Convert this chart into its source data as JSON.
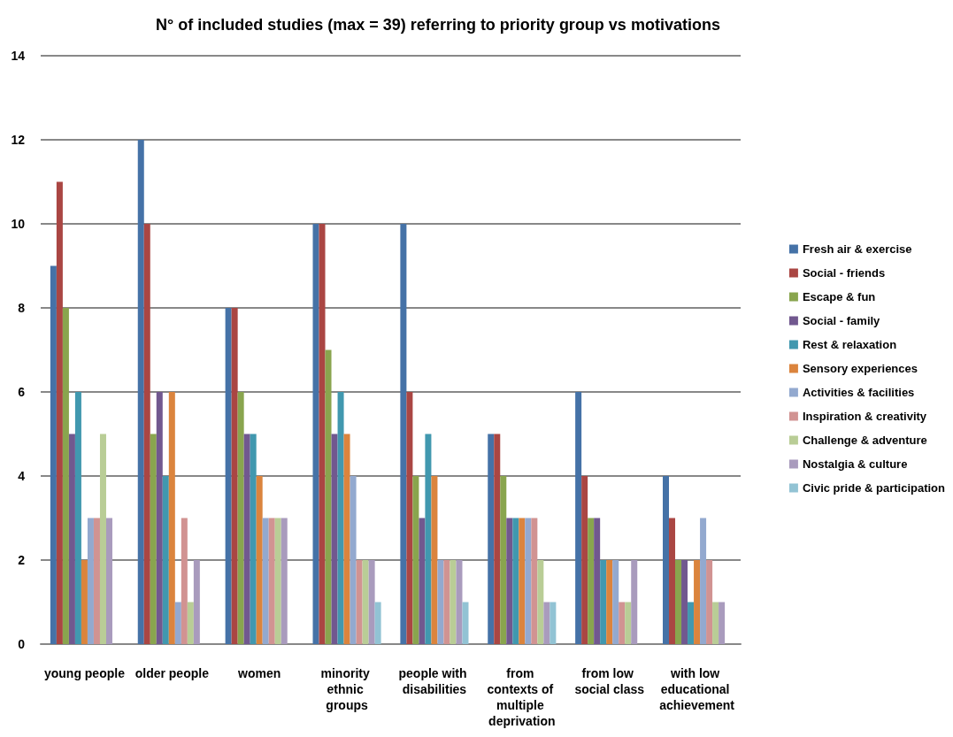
{
  "chart_data": {
    "type": "bar",
    "title": "N° of included studies (max = 39) referring to priority group vs motivations",
    "categories": [
      "young people",
      "older people",
      "women",
      "minority ethnic groups",
      "people with disabilities",
      "from contexts of multiple deprivation",
      "from low social class",
      "with low educational achievement"
    ],
    "series": [
      {
        "name": "Fresh air & exercise",
        "color": "#4572a7",
        "values": [
          9,
          12,
          8,
          10,
          10,
          5,
          6,
          4
        ]
      },
      {
        "name": "Social - friends",
        "color": "#aa4643",
        "values": [
          11,
          10,
          8,
          10,
          6,
          5,
          4,
          3
        ]
      },
      {
        "name": "Escape & fun",
        "color": "#89a54e",
        "values": [
          8,
          5,
          6,
          7,
          4,
          4,
          3,
          2
        ]
      },
      {
        "name": "Social - family",
        "color": "#71588f",
        "values": [
          5,
          6,
          5,
          5,
          3,
          3,
          3,
          2
        ]
      },
      {
        "name": "Rest & relaxation",
        "color": "#4198af",
        "values": [
          6,
          4,
          5,
          6,
          5,
          3,
          2,
          1
        ]
      },
      {
        "name": "Sensory experiences",
        "color": "#db843d",
        "values": [
          2,
          6,
          4,
          5,
          4,
          3,
          2,
          2
        ]
      },
      {
        "name": "Activities & facilities",
        "color": "#93a9cf",
        "values": [
          3,
          1,
          3,
          4,
          2,
          3,
          2,
          3
        ]
      },
      {
        "name": "Inspiration & creativity",
        "color": "#d19392",
        "values": [
          3,
          3,
          3,
          2,
          2,
          3,
          1,
          2
        ]
      },
      {
        "name": "Challenge & adventure",
        "color": "#b9cd96",
        "values": [
          5,
          1,
          3,
          2,
          2,
          2,
          1,
          1
        ]
      },
      {
        "name": "Nostalgia & culture",
        "color": "#a99bbd",
        "values": [
          3,
          2,
          3,
          2,
          2,
          1,
          2,
          1
        ]
      },
      {
        "name": "Civic pride & participation",
        "color": "#92c3d4",
        "values": [
          0,
          0,
          0,
          1,
          1,
          1,
          0,
          0
        ]
      }
    ],
    "ylim": [
      0,
      14
    ],
    "yticks": [
      0,
      2,
      4,
      6,
      8,
      10,
      12,
      14
    ],
    "grid": "y",
    "legend": "right"
  }
}
